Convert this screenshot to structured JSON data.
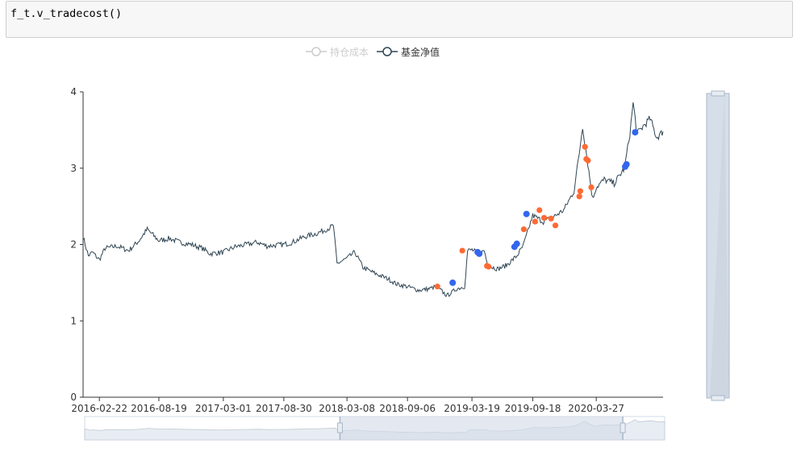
{
  "code_cell": {
    "source": "f_t.v_tradecost()"
  },
  "legend": [
    {
      "name": "持仓成本",
      "active": false,
      "color": "#cccccc"
    },
    {
      "name": "基金净值",
      "active": true,
      "color": "#2f4554"
    }
  ],
  "colors": {
    "line": "#2f4554",
    "buy": "#3366ee",
    "sell": "#ff6a33",
    "zoom_fill": "#d2dbe7",
    "zoom_border": "#a9b7c9"
  },
  "chart_data": {
    "type": "line",
    "title": "",
    "xlabel": "",
    "ylabel": "",
    "ylim": [
      0,
      4
    ],
    "yticks": [
      "0",
      "1",
      "2",
      "3",
      "4"
    ],
    "xticks": [
      "2016-02-22",
      "2016-08-19",
      "2017-03-01",
      "2017-08-30",
      "2018-03-08",
      "2018-09-06",
      "2019-03-19",
      "2019-09-18",
      "2020-03-27"
    ],
    "x_range": [
      "2016-01-04",
      "2020-10-14"
    ],
    "series": [
      {
        "name": "基金净值",
        "points": [
          [
            "2016-01-04",
            2.1
          ],
          [
            "2016-01-20",
            1.85
          ],
          [
            "2016-02-01",
            1.9
          ],
          [
            "2016-02-22",
            1.8
          ],
          [
            "2016-03-10",
            1.95
          ],
          [
            "2016-04-15",
            1.98
          ],
          [
            "2016-05-20",
            1.92
          ],
          [
            "2016-06-20",
            2.05
          ],
          [
            "2016-07-15",
            2.2
          ],
          [
            "2016-08-19",
            2.05
          ],
          [
            "2016-09-20",
            2.08
          ],
          [
            "2016-10-20",
            2.03
          ],
          [
            "2016-11-25",
            2.0
          ],
          [
            "2016-12-28",
            1.95
          ],
          [
            "2017-01-20",
            1.88
          ],
          [
            "2017-03-01",
            1.9
          ],
          [
            "2017-04-05",
            1.97
          ],
          [
            "2017-05-10",
            2.0
          ],
          [
            "2017-06-12",
            2.03
          ],
          [
            "2017-07-10",
            1.98
          ],
          [
            "2017-08-30",
            2.0
          ],
          [
            "2017-09-25",
            2.03
          ],
          [
            "2017-10-30",
            2.1
          ],
          [
            "2017-12-10",
            2.15
          ],
          [
            "2018-01-15",
            2.22
          ],
          [
            "2018-01-26",
            2.25
          ],
          [
            "2018-02-06",
            1.75
          ],
          [
            "2018-03-08",
            1.82
          ],
          [
            "2018-04-01",
            1.9
          ],
          [
            "2018-04-25",
            1.7
          ],
          [
            "2018-06-01",
            1.62
          ],
          [
            "2018-07-10",
            1.55
          ],
          [
            "2018-08-05",
            1.48
          ],
          [
            "2018-09-06",
            1.45
          ],
          [
            "2018-10-10",
            1.4
          ],
          [
            "2018-11-10",
            1.42
          ],
          [
            "2018-12-01",
            1.45
          ],
          [
            "2019-01-03",
            1.33
          ],
          [
            "2019-02-01",
            1.42
          ],
          [
            "2019-02-25",
            1.45
          ],
          [
            "2019-03-06",
            1.92
          ],
          [
            "2019-03-19",
            1.93
          ],
          [
            "2019-04-10",
            1.88
          ],
          [
            "2019-04-25",
            1.92
          ],
          [
            "2019-05-06",
            1.72
          ],
          [
            "2019-06-06",
            1.68
          ],
          [
            "2019-07-01",
            1.73
          ],
          [
            "2019-08-01",
            1.85
          ],
          [
            "2019-08-20",
            1.98
          ],
          [
            "2019-09-05",
            2.2
          ],
          [
            "2019-09-18",
            2.38
          ],
          [
            "2019-10-20",
            2.3
          ],
          [
            "2019-11-15",
            2.35
          ],
          [
            "2019-12-20",
            2.45
          ],
          [
            "2020-01-20",
            2.7
          ],
          [
            "2020-02-05",
            3.2
          ],
          [
            "2020-02-15",
            3.55
          ],
          [
            "2020-03-02",
            3.05
          ],
          [
            "2020-03-16",
            2.6
          ],
          [
            "2020-03-27",
            2.75
          ],
          [
            "2020-04-20",
            2.85
          ],
          [
            "2020-05-20",
            2.8
          ],
          [
            "2020-06-20",
            3.0
          ],
          [
            "2020-07-06",
            3.45
          ],
          [
            "2020-07-16",
            3.85
          ],
          [
            "2020-07-28",
            3.45
          ],
          [
            "2020-08-15",
            3.55
          ],
          [
            "2020-09-05",
            3.65
          ],
          [
            "2020-09-25",
            3.4
          ],
          [
            "2020-10-14",
            3.48
          ]
        ]
      }
    ],
    "trades_buy": [
      [
        "2019-01-20",
        1.5
      ],
      [
        "2019-04-05",
        1.9
      ],
      [
        "2019-04-10",
        1.88
      ],
      [
        "2019-07-25",
        1.97
      ],
      [
        "2019-08-01",
        2.01
      ],
      [
        "2019-08-30",
        2.4
      ],
      [
        "2020-06-22",
        3.02
      ],
      [
        "2020-06-26",
        3.05
      ],
      [
        "2020-07-22",
        3.47
      ]
    ],
    "trades_sell": [
      [
        "2018-12-05",
        1.45
      ],
      [
        "2019-02-18",
        1.92
      ],
      [
        "2019-05-03",
        1.72
      ],
      [
        "2019-05-08",
        1.71
      ],
      [
        "2019-08-22",
        2.2
      ],
      [
        "2019-09-25",
        2.3
      ],
      [
        "2019-10-08",
        2.45
      ],
      [
        "2019-10-22",
        2.35
      ],
      [
        "2019-11-12",
        2.34
      ],
      [
        "2019-11-25",
        2.25
      ],
      [
        "2020-02-05",
        2.63
      ],
      [
        "2020-02-08",
        2.7
      ],
      [
        "2020-02-22",
        3.28
      ],
      [
        "2020-02-26",
        3.12
      ],
      [
        "2020-03-02",
        3.1
      ],
      [
        "2020-03-12",
        2.75
      ]
    ]
  },
  "zoom": {
    "x_start_date": "2018-02-10",
    "x_end_date": "2020-06-10",
    "y_start": 0,
    "y_end": 4
  }
}
